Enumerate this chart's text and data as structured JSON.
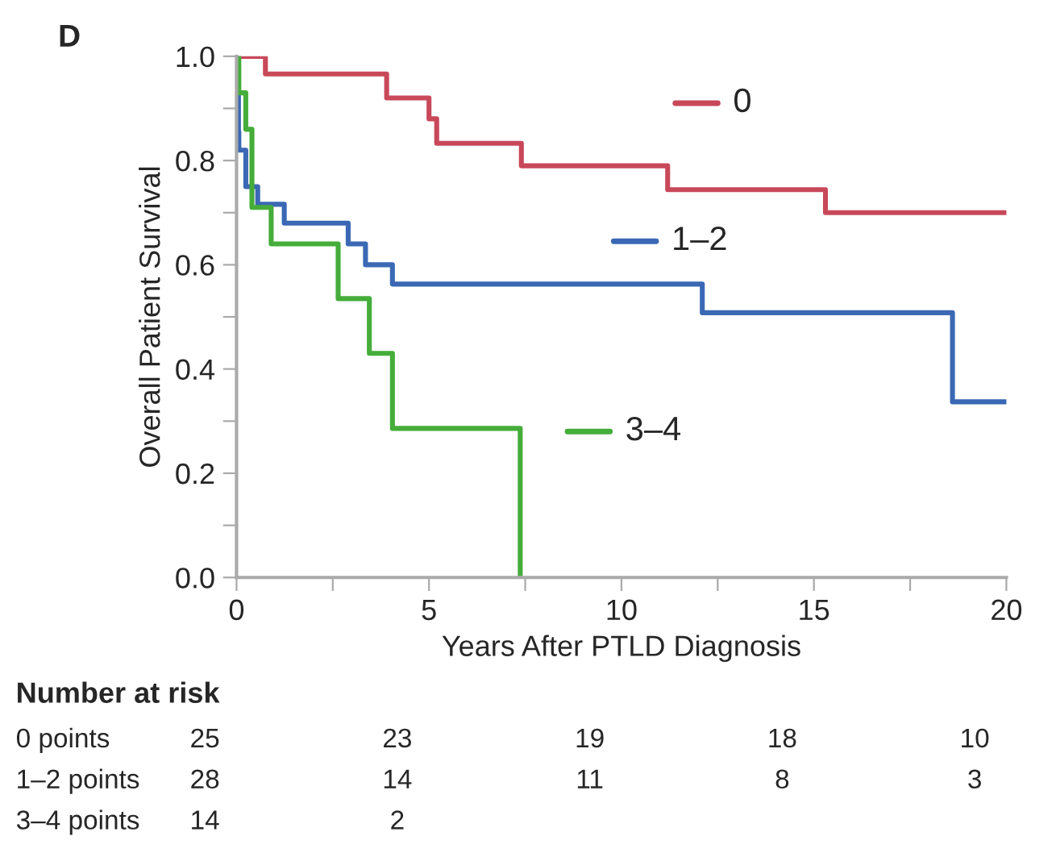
{
  "chart_data": {
    "type": "step",
    "xlabel": "Years After PTLD Diagnosis",
    "ylabel": "Overall Patient Survival",
    "series": [
      {
        "name": "0",
        "color": "#c8485a",
        "x": [
          0,
          0.75,
          3.9,
          5.0,
          5.2,
          7.4,
          11.2,
          15.3,
          20
        ],
        "values": [
          1.0,
          0.966,
          0.92,
          0.88,
          0.833,
          0.79,
          0.744,
          0.7,
          0.7
        ]
      },
      {
        "name": "1–2",
        "color": "#3a68b4",
        "x": [
          0,
          0.05,
          0.06,
          0.24,
          0.55,
          1.24,
          2.9,
          3.35,
          4.05,
          12.1,
          18.6,
          20
        ],
        "values": [
          1.0,
          0.855,
          0.82,
          0.75,
          0.716,
          0.68,
          0.64,
          0.6,
          0.563,
          0.508,
          0.337,
          0.337
        ]
      },
      {
        "name": "3–4",
        "color": "#45ad3a",
        "x": [
          0,
          0.06,
          0.24,
          0.4,
          0.9,
          2.64,
          3.45,
          4.05,
          7.37
        ],
        "values": [
          1.0,
          0.93,
          0.86,
          0.71,
          0.64,
          0.535,
          0.43,
          0.286,
          0.0
        ]
      }
    ],
    "xlim": [
      0,
      20
    ],
    "ylim": [
      0,
      1.0
    ],
    "xticks": [
      0,
      {
        "value": 2.5,
        "label": null
      },
      5,
      {
        "value": 7.5,
        "label": null
      },
      10,
      {
        "value": 12.5,
        "label": null
      },
      15,
      {
        "value": 17.5,
        "label": null
      },
      20
    ],
    "yticks": [
      {
        "value": 0,
        "label": "0.0"
      },
      {
        "value": 0.1,
        "label": null
      },
      {
        "value": 0.2,
        "label": "0.2"
      },
      {
        "value": 0.3,
        "label": null
      },
      {
        "value": 0.4,
        "label": "0.4"
      },
      {
        "value": 0.5,
        "label": null
      },
      {
        "value": 0.6,
        "label": "0.6"
      },
      {
        "value": 0.7,
        "label": null
      },
      {
        "value": 0.8,
        "label": "0.8"
      },
      {
        "value": 0.9,
        "label": null
      },
      {
        "value": 1.0,
        "label": "1.0"
      }
    ],
    "grid": false,
    "legend": "right",
    "marker": "none",
    "line_style": "solid",
    "annotations": [
      "D",
      "Number at risk",
      "0 points",
      "25",
      "23",
      "19",
      "18",
      "10",
      "1–2 points",
      "28",
      "14",
      "11",
      "8",
      "3",
      "3–4 points",
      "14",
      "2"
    ]
  }
}
